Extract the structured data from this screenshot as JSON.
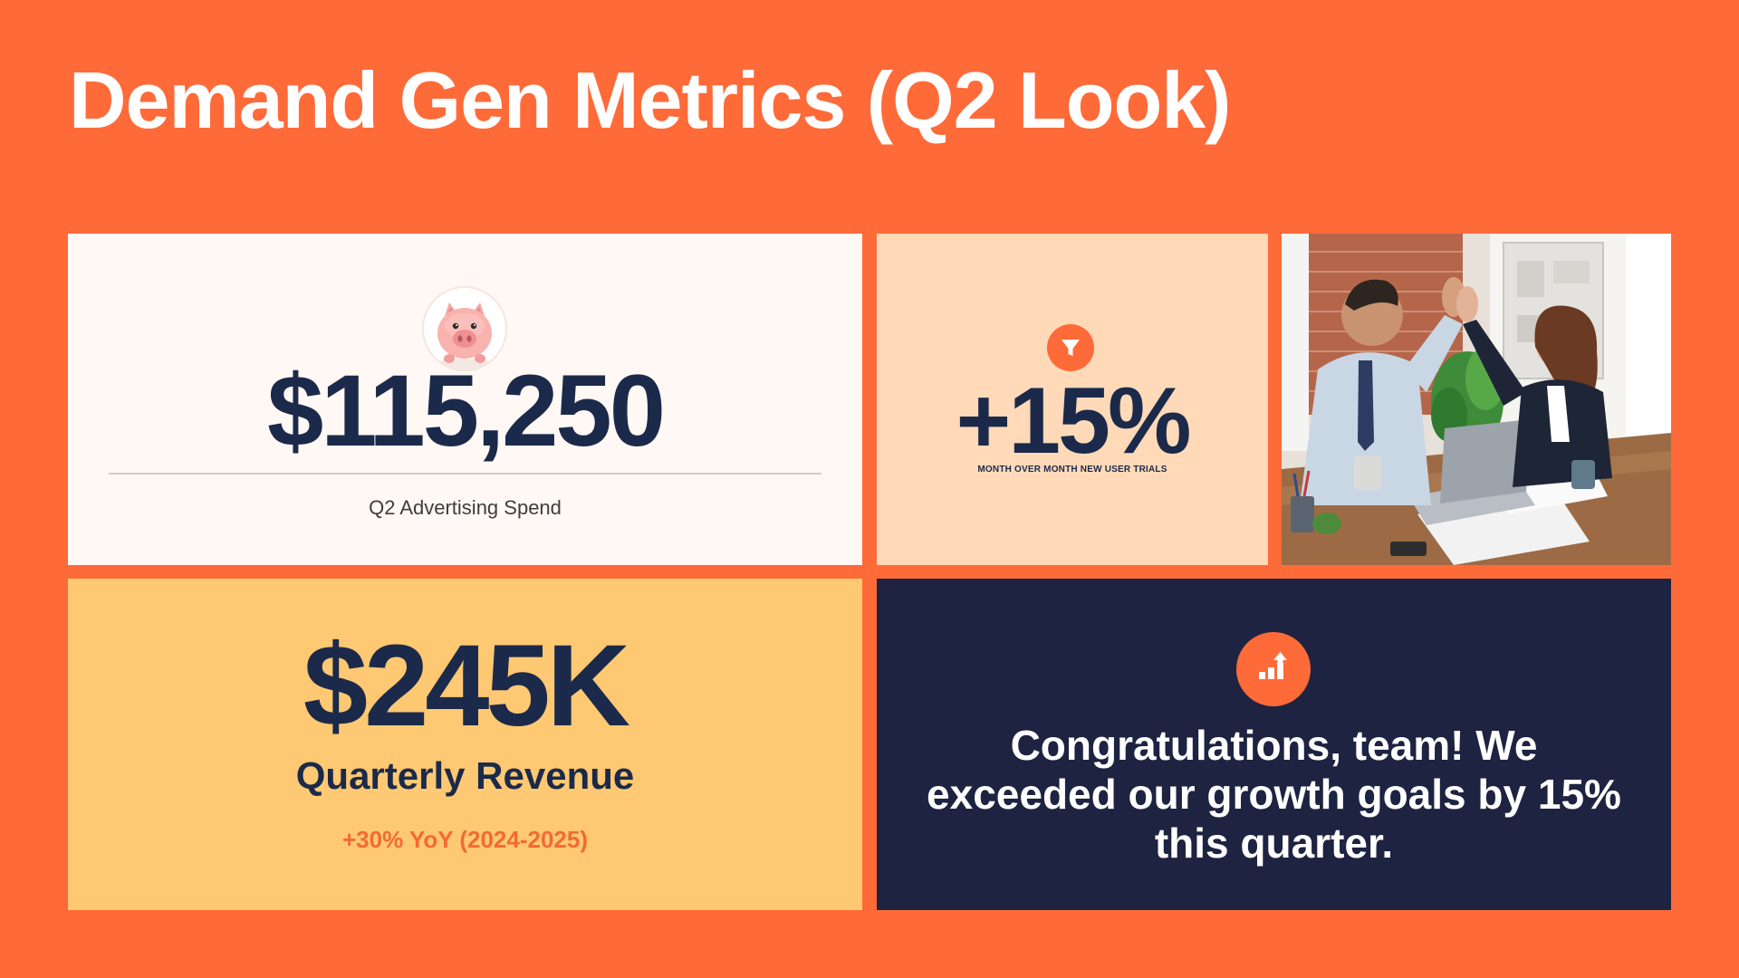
{
  "slide": {
    "title": "Demand Gen Metrics (Q2 Look)",
    "background_color": "#FF6A39"
  },
  "cards": {
    "spend": {
      "value": "$115,250",
      "label": "Q2 Advertising Spend",
      "icon": "piggy-bank-icon",
      "background_color": "#FFF8F5"
    },
    "trials": {
      "value": "+15%",
      "label": "MONTH OVER MONTH NEW USER TRIALS",
      "icon": "funnel-icon",
      "background_color": "#FFD9B8"
    },
    "photo": {
      "description_icon": "team-high-five-photo"
    },
    "revenue": {
      "value": "$245K",
      "label": "Quarterly Revenue",
      "growth": "+30% YoY (2024-2025)",
      "background_color": "#FFC872",
      "growth_color": "#F26A36"
    },
    "congrats": {
      "message": "Congratulations, team! We exceeded our growth goals by 15% this quarter.",
      "icon": "bar-chart-growth-icon",
      "background_color": "#1D2341"
    }
  },
  "colors": {
    "navy": "#1B2A4A",
    "accent": "#FF6A39",
    "white": "#FFFFFF"
  }
}
